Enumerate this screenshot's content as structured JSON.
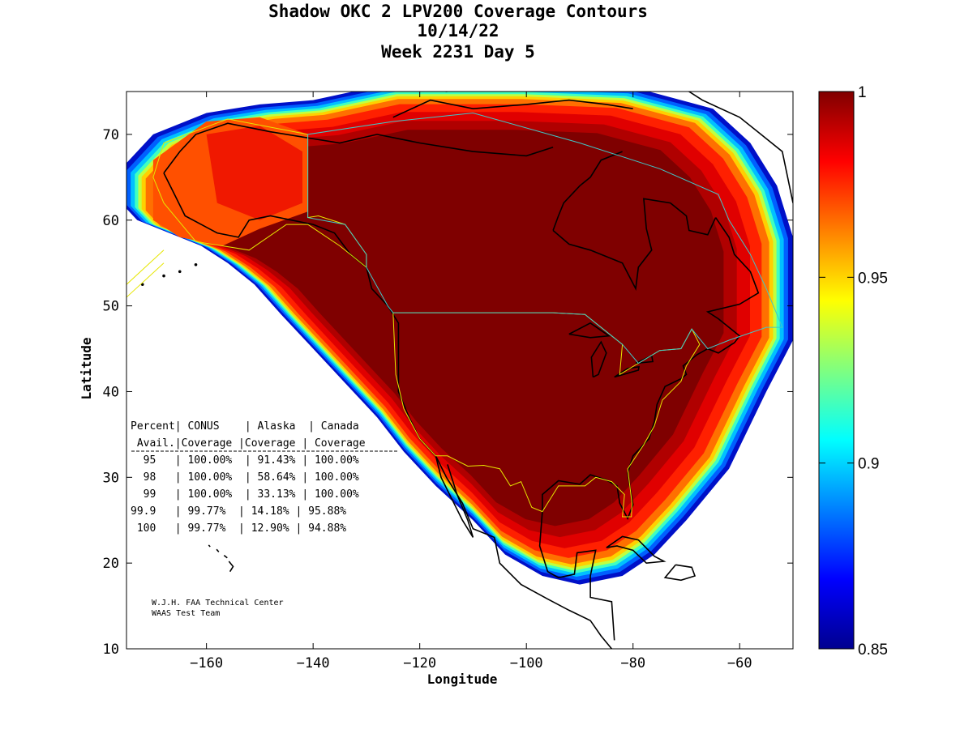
{
  "title": {
    "line1": "Shadow OKC 2 LPV200 Coverage Contours",
    "line2": "10/14/22",
    "line3": "Week 2231 Day 5"
  },
  "axes": {
    "xlabel": "Longitude",
    "ylabel": "Latitude",
    "xlim": [
      -175,
      -50
    ],
    "ylim": [
      10,
      75
    ],
    "xticks": [
      -160,
      -140,
      -120,
      -100,
      -80,
      -60
    ],
    "yticks": [
      10,
      20,
      30,
      40,
      50,
      60,
      70
    ]
  },
  "colorbar": {
    "min": 0.85,
    "max": 1,
    "ticks": [
      "1",
      "0.95",
      "0.9",
      "0.85"
    ],
    "colormap": "jet"
  },
  "table": {
    "header1": "Percent| CONUS    | Alaska  | Canada",
    "header2": " Avail.|Coverage |Coverage | Coverage",
    "rows": [
      "  95   | 100.00%  | 91.43% | 100.00%",
      "  98   | 100.00%  | 58.64% | 100.00%",
      "  99   | 100.00%  | 33.13% | 100.00%",
      "99.9   | 99.77%  | 14.18% | 95.88%",
      " 100   | 99.77%  | 12.90% | 94.88%"
    ]
  },
  "credit": {
    "line1": "W.J.H. FAA Technical Center",
    "line2": "WAAS Test Team"
  },
  "colors": {
    "core": "#7f0000",
    "boundary_service": "#e6e600",
    "boundary_canada": "#40c8c8",
    "coastline": "#000000"
  }
}
